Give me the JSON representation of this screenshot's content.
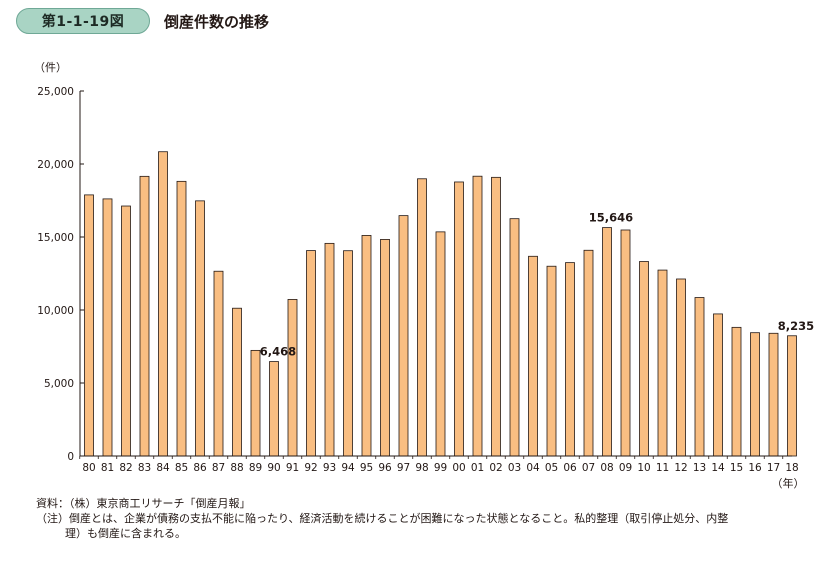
{
  "figure": {
    "number": "第1-1-19図",
    "title": "倒産件数の推移"
  },
  "notes": {
    "source": "資料：（株）東京商工リサーチ「倒産月報」",
    "note_line1": "（注）倒産とは、企業が債務の支払不能に陥ったり、経済活動を続けることが困難になった状態となること。私的整理（取引停止処分、内整",
    "note_line2": "理）も倒産に含まれる。"
  },
  "colors": {
    "bar_fill": "#f9be82",
    "bar_stroke": "#231815",
    "badge_fill": "#a9d4c4"
  },
  "chart_data": {
    "type": "bar",
    "categories": [
      "80",
      "81",
      "82",
      "83",
      "84",
      "85",
      "86",
      "87",
      "88",
      "89",
      "90",
      "91",
      "92",
      "93",
      "94",
      "95",
      "96",
      "97",
      "98",
      "99",
      "00",
      "01",
      "02",
      "03",
      "04",
      "05",
      "06",
      "07",
      "08",
      "09",
      "10",
      "11",
      "12",
      "13",
      "14",
      "15",
      "16",
      "17",
      "18"
    ],
    "values": [
      17884,
      17610,
      17122,
      19155,
      20841,
      18812,
      17476,
      12655,
      10122,
      7234,
      6468,
      10723,
      14069,
      14564,
      14061,
      15108,
      14834,
      16464,
      18988,
      15352,
      18769,
      19164,
      19087,
      16255,
      13679,
      12998,
      13245,
      14091,
      15646,
      15480,
      13321,
      12734,
      12124,
      10855,
      9731,
      8812,
      8446,
      8405,
      8235
    ],
    "ylabel": "（件）",
    "xlabel": "（年）",
    "ylim": [
      0,
      25000
    ],
    "yticks": [
      0,
      5000,
      10000,
      15000,
      20000,
      25000
    ],
    "ytick_labels": [
      "0",
      "5,000",
      "10,000",
      "15,000",
      "20,000",
      "25,000"
    ],
    "annotations": [
      {
        "category": "90",
        "text": "6,468"
      },
      {
        "category": "08",
        "text": "15,646"
      },
      {
        "category": "18",
        "text": "8,235"
      }
    ],
    "grid": false,
    "legend": "none"
  }
}
